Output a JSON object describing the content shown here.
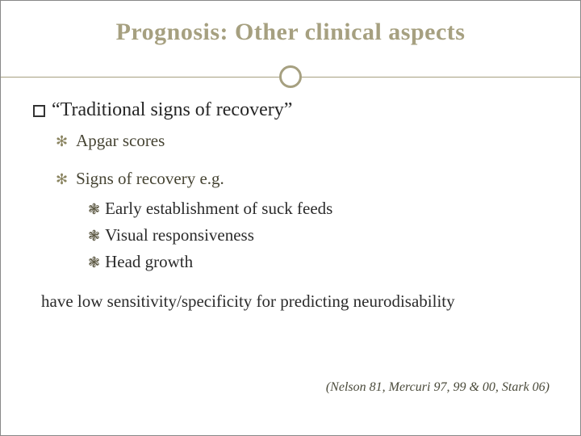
{
  "colors": {
    "accent": "#a6a080",
    "text": "#262626",
    "subtext": "#464433",
    "background": "#ffffff"
  },
  "title": "Prognosis: Other clinical aspects",
  "heading": "“Traditional signs of recovery”",
  "items": {
    "item1": "Apgar scores",
    "item2": "Signs of recovery e.g.",
    "sub1": "Early establishment of suck feeds",
    "sub2": "Visual responsiveness",
    "sub3": "Head growth"
  },
  "conclusion": "have low sensitivity/specificity for predicting neurodisability",
  "citation": "(Nelson 81, Mercuri 97, 99 & 00, Stark 06)",
  "bullets": {
    "lvl1": "□",
    "lvl2": "✻",
    "lvl3": "❃"
  }
}
